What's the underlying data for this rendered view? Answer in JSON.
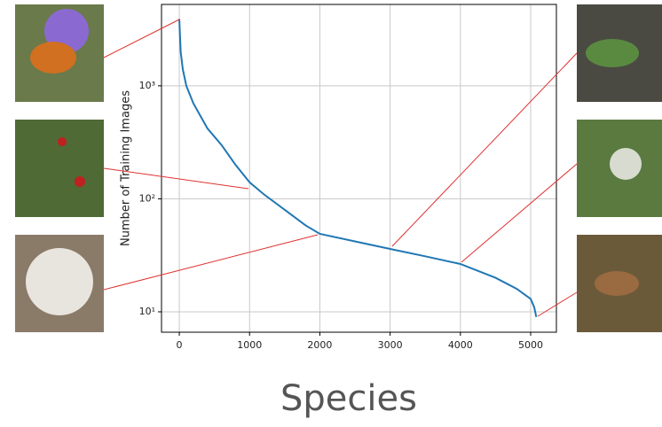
{
  "chart_data": {
    "type": "line",
    "x_label": "Species",
    "y_label": "Number of Training Images",
    "log_y": true,
    "grid": true,
    "x": [
      0,
      20,
      50,
      100,
      200,
      400,
      600,
      800,
      1000,
      1200,
      1500,
      1800,
      2000,
      2500,
      3000,
      3500,
      4000,
      4500,
      4800,
      5000,
      5050,
      5080
    ],
    "series": [
      {
        "color": "#1f77b4",
        "values": [
          3900,
          2000,
          1400,
          1000,
          700,
          420,
          300,
          200,
          140,
          110,
          80,
          58,
          49,
          42,
          36,
          31,
          26.5,
          20,
          16,
          13,
          11,
          9
        ]
      }
    ],
    "xlim": [
      -253,
      5366
    ],
    "xticks": [
      0,
      1000,
      2000,
      3000,
      4000,
      5000
    ],
    "ylim": [
      6.6,
      5250
    ],
    "yticks": [
      {
        "value": 10,
        "label": "10¹"
      },
      {
        "value": 100,
        "label": "10²"
      },
      {
        "value": 1000,
        "label": "10³"
      }
    ]
  }
}
